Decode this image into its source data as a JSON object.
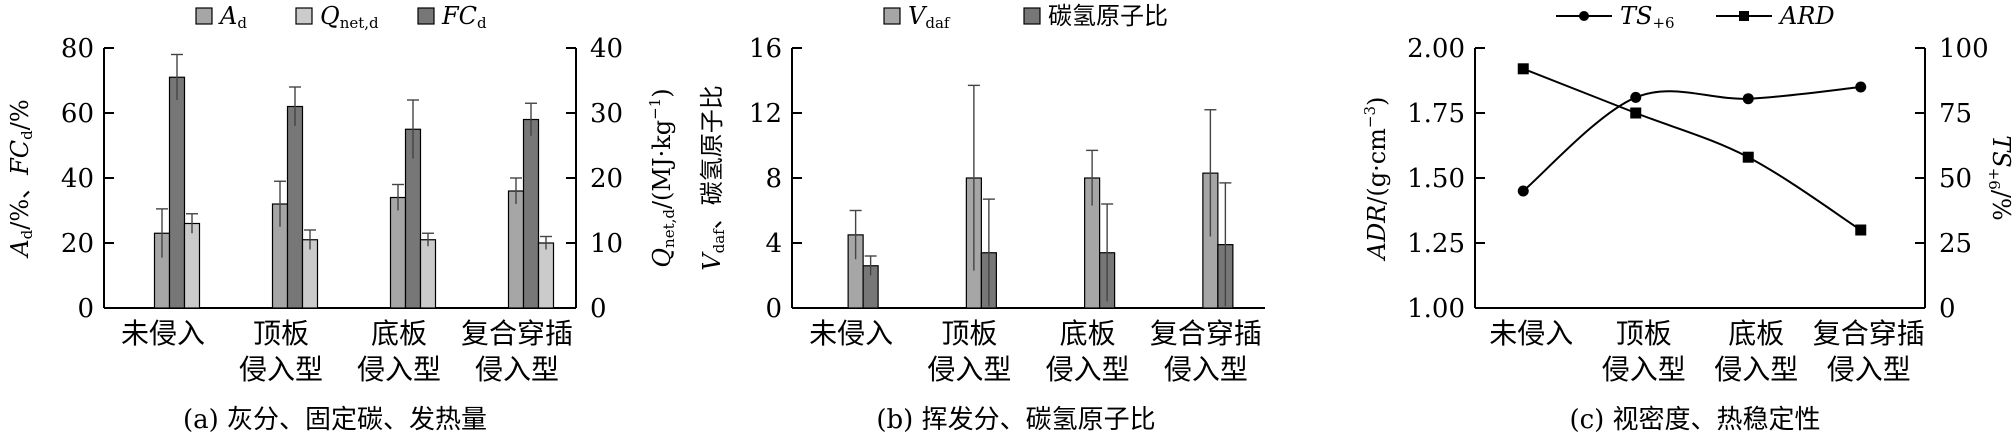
{
  "categories": [
    "未侵入",
    "顶板\n侵入型",
    "底板\n侵入型",
    "复合穿插\n侵入型"
  ],
  "colors": {
    "light": "#cbcbcb",
    "mid": "#a6a6a6",
    "dark": "#777777",
    "line": "#000000"
  },
  "chart_data": [
    {
      "type": "bar",
      "caption": "(a) 灰分、固定碳、发热量",
      "legend": [
        "A_d",
        "Q_net,d",
        "FC_d"
      ],
      "left_ylabel": "A_d/%、FC_d/%",
      "right_ylabel": "Q_net,d/(MJ·kg^-1)",
      "left_ylim": [
        0,
        80
      ],
      "right_ylim": [
        0,
        40
      ],
      "left_ticks": [
        "0",
        "20",
        "40",
        "60",
        "80"
      ],
      "right_ticks": [
        "0",
        "10",
        "20",
        "30",
        "40"
      ],
      "series": [
        {
          "name": "A_d",
          "axis": "left",
          "values": [
            23,
            32,
            34,
            36
          ],
          "errors": [
            7.5,
            7,
            4,
            4
          ]
        },
        {
          "name": "FC_d",
          "axis": "left",
          "values": [
            71,
            62,
            55,
            58
          ],
          "errors": [
            7,
            6,
            9,
            5
          ]
        },
        {
          "name": "Q_net,d",
          "axis": "right",
          "values": [
            13,
            10.5,
            10.5,
            10
          ],
          "errors": [
            1.5,
            1.5,
            1,
            1
          ]
        }
      ]
    },
    {
      "type": "bar",
      "caption": "(b) 挥发分、碳氢原子比",
      "legend": [
        "V_daf",
        "碳氢原子比"
      ],
      "ylabel": "V_daf、碳氢原子比",
      "ylim": [
        0,
        16
      ],
      "ticks": [
        "0",
        "4",
        "8",
        "12",
        "16"
      ],
      "series": [
        {
          "name": "V_daf",
          "values": [
            4.5,
            8,
            8,
            8.3
          ],
          "errors": [
            1.5,
            5.7,
            1.7,
            3.9
          ]
        },
        {
          "name": "碳氢原子比",
          "values": [
            2.6,
            3.4,
            3.4,
            3.9
          ],
          "errors": [
            0.6,
            3.3,
            3.0,
            3.8
          ]
        }
      ]
    },
    {
      "type": "line",
      "caption": "(c) 视密度、热稳定性",
      "legend": [
        "TS_+6",
        "ARD"
      ],
      "left_ylabel": "ADR/(g·cm^-3)",
      "right_ylabel": "TS_+6/%",
      "left_ylim": [
        1.0,
        2.0
      ],
      "right_ylim": [
        0,
        100
      ],
      "left_ticks": [
        "1.00",
        "1.25",
        "1.50",
        "1.75",
        "2.00"
      ],
      "right_ticks": [
        "0",
        "25",
        "50",
        "75",
        "100"
      ],
      "series": [
        {
          "name": "TS_+6",
          "axis": "right",
          "marker": "circle",
          "values": [
            45,
            81,
            80.5,
            85
          ]
        },
        {
          "name": "ARD",
          "axis": "left",
          "marker": "square",
          "values": [
            1.92,
            1.75,
            1.58,
            1.3
          ]
        }
      ]
    }
  ]
}
